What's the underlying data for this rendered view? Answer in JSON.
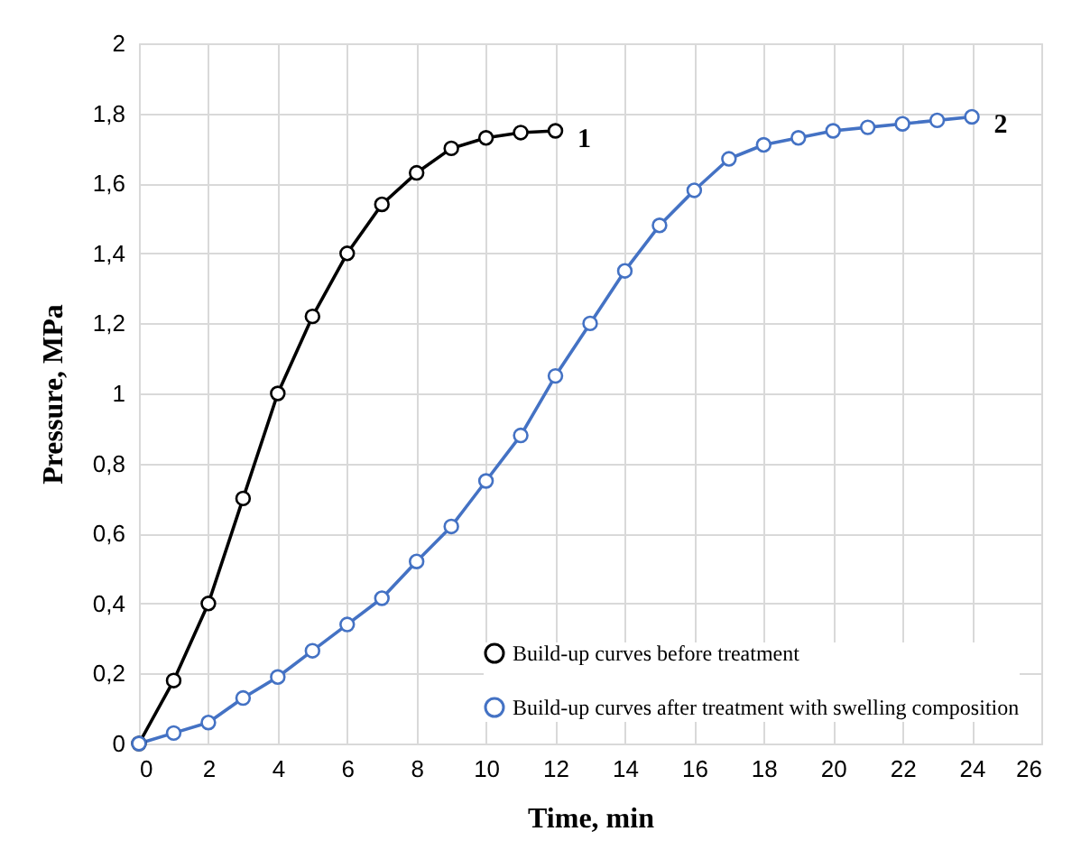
{
  "chart_data": {
    "type": "line",
    "xlabel": "Time, min",
    "ylabel": "Pressure, MPa",
    "xlim": [
      0,
      26
    ],
    "xticks": [
      0,
      2,
      4,
      6,
      8,
      10,
      12,
      14,
      16,
      18,
      20,
      22,
      24,
      26
    ],
    "ylim": [
      0,
      2
    ],
    "yticks": [
      0,
      {
        "value": 0.2,
        "label": "0,2"
      },
      {
        "value": 0.4,
        "label": "0,4"
      },
      {
        "value": 0.6,
        "label": "0,6"
      },
      {
        "value": 0.8,
        "label": "0,8"
      },
      1,
      {
        "value": 1.2,
        "label": "1,2"
      },
      {
        "value": 1.4,
        "label": "1,4"
      },
      {
        "value": 1.6,
        "label": "1,6"
      },
      {
        "value": 1.8,
        "label": "1,8"
      },
      2
    ],
    "grid": true,
    "legend": "bottom right",
    "marker": "circle",
    "line_style": "solid",
    "series": [
      {
        "name": "Build-up curves before treatment",
        "color": "#000000",
        "x": [
          0,
          1,
          2,
          3,
          4,
          5,
          6,
          7,
          8,
          9,
          10,
          11,
          12
        ],
        "values": [
          0,
          0.18,
          0.4,
          0.7,
          1.0,
          1.22,
          1.4,
          1.54,
          1.63,
          1.7,
          1.73,
          1.745,
          1.75
        ]
      },
      {
        "name": "Build-up curves after treatment with swelling composition",
        "color": "#4472c4",
        "x": [
          0,
          1,
          2,
          3,
          4,
          5,
          6,
          7,
          8,
          9,
          10,
          11,
          12,
          13,
          14,
          15,
          16,
          17,
          18,
          19,
          20,
          21,
          22,
          23,
          24
        ],
        "values": [
          0,
          0.03,
          0.06,
          0.13,
          0.19,
          0.265,
          0.34,
          0.415,
          0.52,
          0.62,
          0.75,
          0.88,
          1.05,
          1.2,
          1.35,
          1.48,
          1.58,
          1.67,
          1.71,
          1.73,
          1.75,
          1.76,
          1.77,
          1.78,
          1.79
        ]
      }
    ],
    "annotations": [
      {
        "text": "1",
        "x": 12,
        "y": 1.75
      },
      {
        "text": "2",
        "x": 24,
        "y": 1.79
      }
    ]
  }
}
